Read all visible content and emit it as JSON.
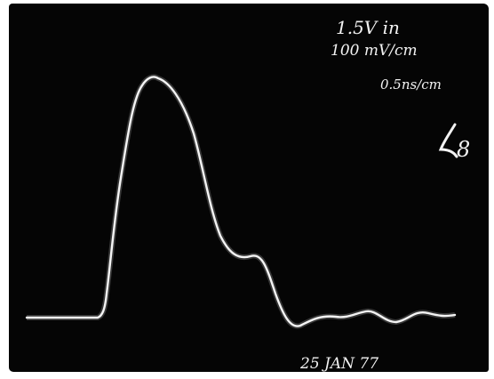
{
  "photo": {
    "subject": "oscilloscope-trace",
    "background_color": "#050505",
    "trace_color": "#f4f4f4",
    "frame_color": "#ffffff"
  },
  "annotations": {
    "line1": "1.5V in",
    "line2": "100 mV/cm",
    "line3": "0.5ns/cm",
    "line4": "8",
    "date": "25 JAN 77"
  }
}
